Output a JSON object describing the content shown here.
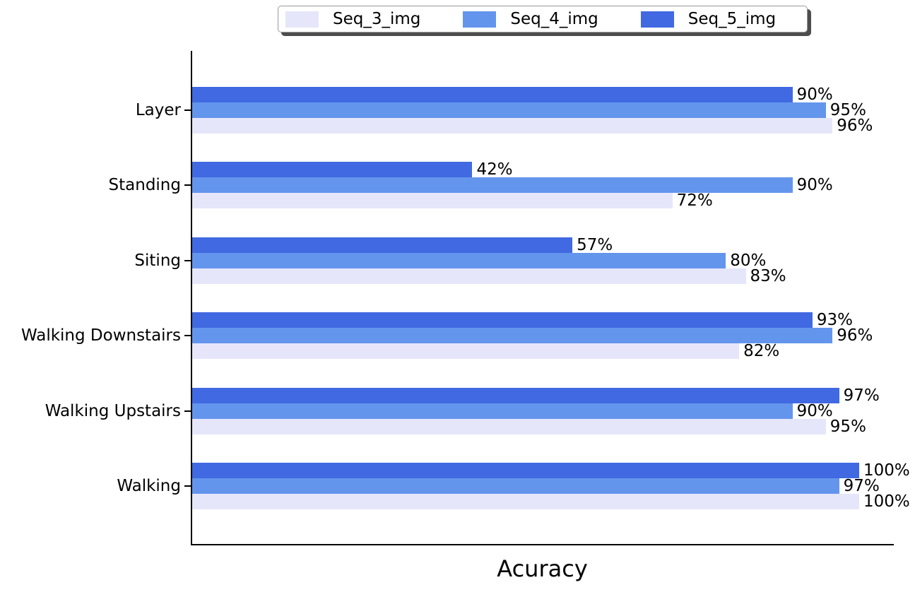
{
  "legend": {
    "items": [
      {
        "label": "Seq_3_img",
        "color": "#E6E6FA"
      },
      {
        "label": "Seq_4_img",
        "color": "#6495ED"
      },
      {
        "label": "Seq_5_img",
        "color": "#4169E1"
      }
    ]
  },
  "chart_data": {
    "type": "bar",
    "orientation": "horizontal",
    "title": "",
    "xlabel": "Acuracy",
    "ylabel": "",
    "grid": false,
    "legend_position": "top-center",
    "x_axis_tick_labels": [],
    "xlim_estimate": [
      0,
      105
    ],
    "value_unit": "%",
    "value_label_suffix": "%",
    "categories_top_to_bottom": [
      "Layer",
      "Standing",
      "Siting",
      "Walking Downstairs",
      "Walking Upstairs",
      "Walking"
    ],
    "bar_order_top_to_bottom_within_group": [
      "Seq_5_img",
      "Seq_4_img",
      "Seq_3_img"
    ],
    "series": [
      {
        "name": "Seq_3_img",
        "color": "#E6E6FA",
        "values": [
          96,
          72,
          83,
          82,
          95,
          100
        ]
      },
      {
        "name": "Seq_4_img",
        "color": "#6495ED",
        "values": [
          95,
          90,
          80,
          96,
          90,
          97
        ]
      },
      {
        "name": "Seq_5_img",
        "color": "#4169E1",
        "values": [
          90,
          42,
          57,
          93,
          97,
          100
        ]
      }
    ]
  }
}
